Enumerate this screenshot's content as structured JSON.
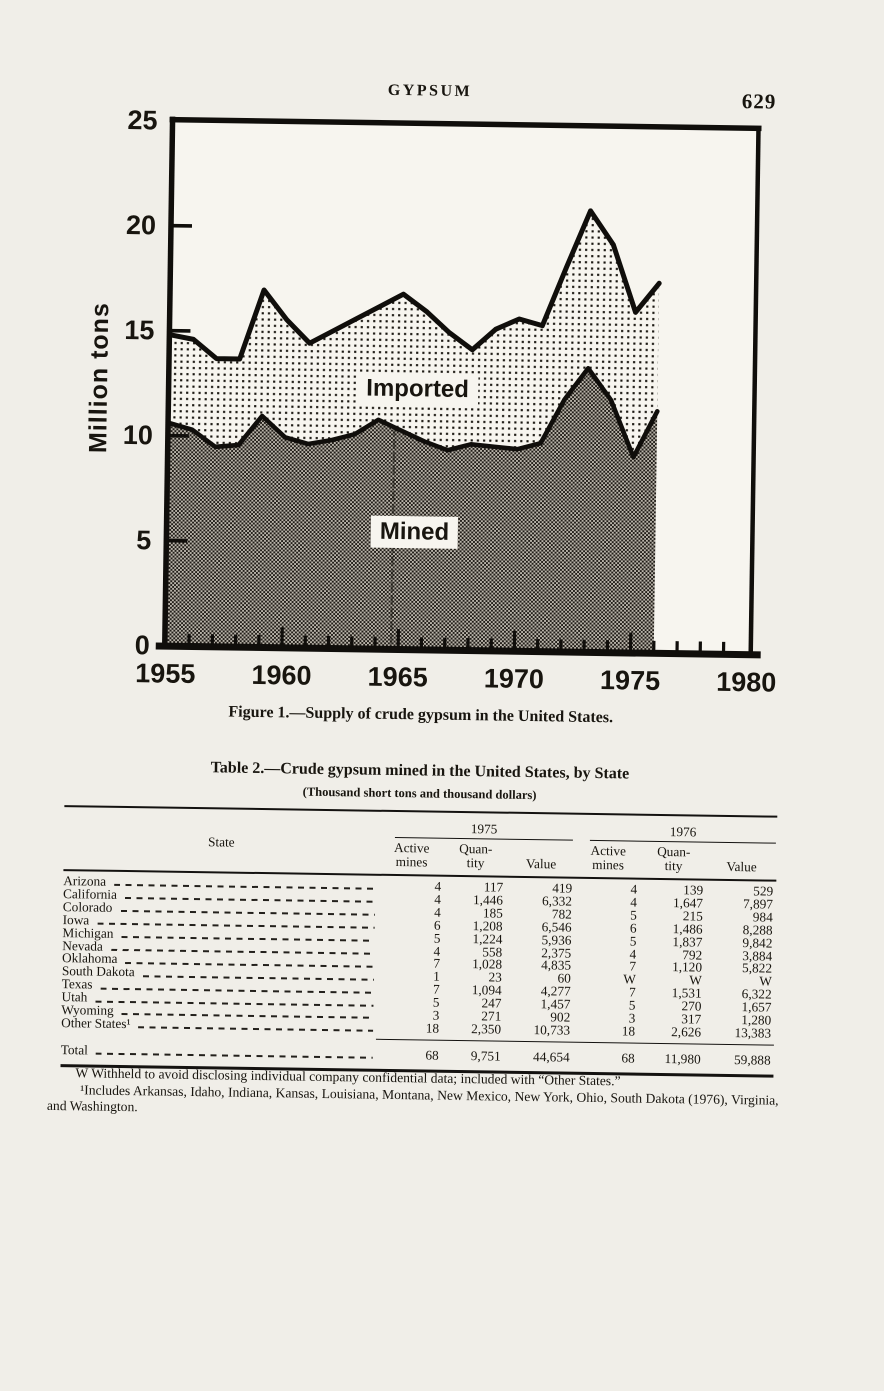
{
  "page": {
    "running_head": "GYPSUM",
    "page_number": "629"
  },
  "figure": {
    "caption": "Figure 1.—Supply of crude gypsum in the United States.",
    "y_axis_label": "Million tons",
    "y_ticks": [
      "25",
      "20",
      "15",
      "10",
      "5",
      "0"
    ],
    "x_ticks": [
      "1955",
      "1960",
      "1965",
      "1970",
      "1975",
      "1980"
    ],
    "area_labels": {
      "imported": "Imported",
      "mined": "Mined"
    }
  },
  "chart_data": {
    "type": "area",
    "title": "Figure 1.—Supply of crude gypsum in the United States.",
    "xlabel": "",
    "ylabel": "Million tons",
    "xlim": [
      1955,
      1980
    ],
    "ylim": [
      0,
      25
    ],
    "grid": false,
    "legend_position": "labels inside plot",
    "x": [
      1955,
      1956,
      1957,
      1958,
      1959,
      1960,
      1961,
      1962,
      1963,
      1964,
      1965,
      1966,
      1967,
      1968,
      1969,
      1970,
      1971,
      1972,
      1973,
      1974,
      1975,
      1976
    ],
    "series": [
      {
        "name": "Mined",
        "values": [
          10.6,
          10.3,
          9.5,
          9.6,
          11.0,
          10.0,
          9.7,
          9.9,
          10.2,
          10.9,
          10.4,
          9.9,
          9.5,
          9.8,
          9.7,
          9.6,
          9.9,
          12.0,
          13.5,
          12.0,
          9.3,
          11.5
        ]
      },
      {
        "name": "Total supply (Mined + Imported)",
        "values": [
          14.8,
          14.6,
          13.7,
          13.7,
          17.0,
          15.6,
          14.5,
          15.1,
          15.7,
          16.3,
          16.9,
          16.1,
          15.1,
          14.3,
          15.3,
          15.8,
          15.5,
          18.3,
          21.0,
          19.4,
          16.2,
          17.6
        ]
      }
    ],
    "note": "Stacked area: Imported band is the difference between the total-supply line and the Mined line."
  },
  "table": {
    "title": "Table 2.—Crude gypsum mined in the United States, by State",
    "subtitle": "(Thousand short tons and thousand dollars)",
    "state_header": "State",
    "col_groups": [
      "1975",
      "1976"
    ],
    "sub_headers": [
      "Active\nmines",
      "Quan-\ntity",
      "Value",
      "Active\nmines",
      "Quan-\ntity",
      "Value"
    ],
    "rows": [
      {
        "state": "Arizona",
        "values": [
          "4",
          "117",
          "419",
          "4",
          "139",
          "529"
        ]
      },
      {
        "state": "California",
        "values": [
          "4",
          "1,446",
          "6,332",
          "4",
          "1,647",
          "7,897"
        ]
      },
      {
        "state": "Colorado",
        "values": [
          "4",
          "185",
          "782",
          "5",
          "215",
          "984"
        ]
      },
      {
        "state": "Iowa",
        "values": [
          "6",
          "1,208",
          "6,546",
          "6",
          "1,486",
          "8,288"
        ]
      },
      {
        "state": "Michigan",
        "values": [
          "5",
          "1,224",
          "5,936",
          "5",
          "1,837",
          "9,842"
        ]
      },
      {
        "state": "Nevada",
        "values": [
          "4",
          "558",
          "2,375",
          "4",
          "792",
          "3,884"
        ]
      },
      {
        "state": "Oklahoma",
        "values": [
          "7",
          "1,028",
          "4,835",
          "7",
          "1,120",
          "5,822"
        ]
      },
      {
        "state": "South Dakota",
        "values": [
          "1",
          "23",
          "60",
          "W",
          "W",
          "W"
        ]
      },
      {
        "state": "Texas",
        "values": [
          "7",
          "1,094",
          "4,277",
          "7",
          "1,531",
          "6,322"
        ]
      },
      {
        "state": "Utah",
        "values": [
          "5",
          "247",
          "1,457",
          "5",
          "270",
          "1,657"
        ]
      },
      {
        "state": "Wyoming",
        "values": [
          "3",
          "271",
          "902",
          "3",
          "317",
          "1,280"
        ]
      },
      {
        "state": "Other States¹",
        "values": [
          "18",
          "2,350",
          "10,733",
          "18",
          "2,626",
          "13,383"
        ]
      }
    ],
    "total_row": {
      "label": "Total",
      "values": [
        "68",
        "9,751",
        "44,654",
        "68",
        "11,980",
        "59,888"
      ]
    },
    "footnotes": [
      "W Withheld to avoid disclosing individual company confidential data; included with “Other States.”",
      "¹Includes Arkansas, Idaho, Indiana, Kansas, Louisiana, Montana, New Mexico, New York, Ohio, South Dakota (1976), Virginia, and Washington."
    ]
  }
}
